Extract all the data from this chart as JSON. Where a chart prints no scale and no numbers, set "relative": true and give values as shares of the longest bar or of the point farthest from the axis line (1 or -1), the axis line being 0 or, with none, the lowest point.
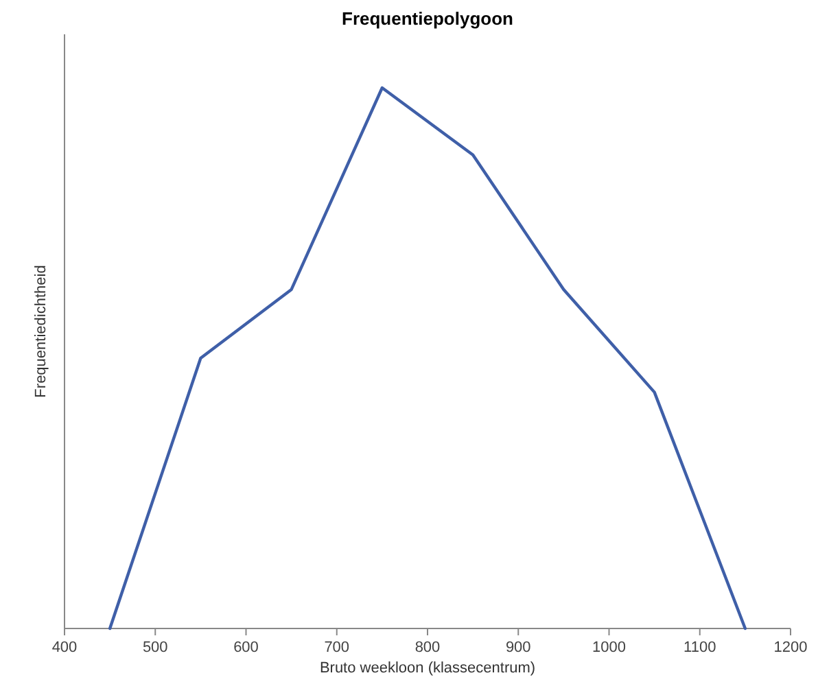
{
  "chart_data": {
    "type": "line",
    "title": "Frequentiepolygoon",
    "xlabel": "Bruto weekloon (klassecentrum)",
    "ylabel": "Frequentiedichtheid",
    "relative": true,
    "xlim": [
      400,
      1200
    ],
    "xticks": [
      400,
      500,
      600,
      700,
      800,
      900,
      1000,
      1100,
      1200
    ],
    "marker": "none",
    "line_style": "solid",
    "series": [
      {
        "color": "#3f5fa8",
        "x": [
          450,
          550,
          650,
          750,
          850,
          950,
          1050,
          1150
        ],
        "values": [
          0,
          0.5,
          0.627,
          1,
          0.876,
          0.627,
          0.437,
          0
        ]
      }
    ]
  }
}
